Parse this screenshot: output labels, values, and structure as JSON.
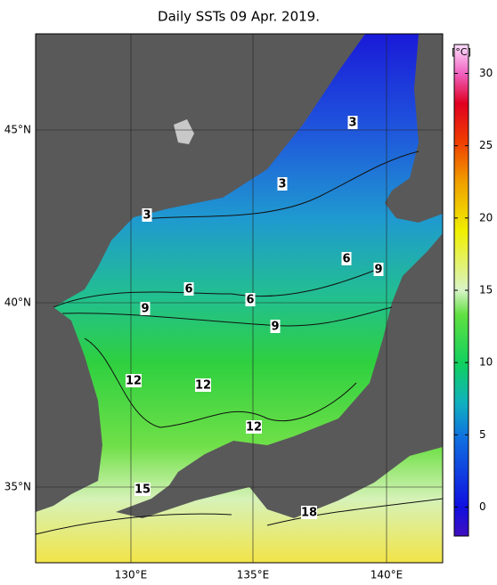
{
  "title": "Daily SSTs 09 Apr. 2019.",
  "lon_labels": [
    "130°E",
    "135°E",
    "140°E"
  ],
  "lat_labels": [
    "45°N",
    "40°N",
    "35°N"
  ],
  "colorbar": {
    "unit": "[°C]",
    "range": [
      -2,
      32
    ],
    "ticks": [
      30,
      25,
      20,
      15,
      10,
      5,
      0
    ]
  },
  "contour_labels": [
    "3",
    "3",
    "3",
    "6",
    "9",
    "6",
    "6",
    "9",
    "9",
    "12",
    "12",
    "12",
    "15",
    "18"
  ]
}
